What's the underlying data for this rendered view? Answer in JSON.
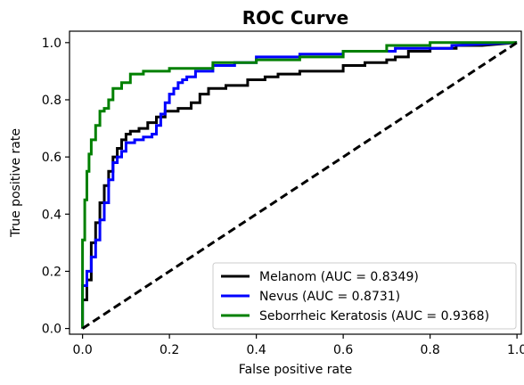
{
  "chart_data": {
    "type": "line",
    "title": "ROC Curve",
    "xlabel": "False positive rate",
    "ylabel": "True positive rate",
    "xlim": [
      -0.03,
      1.01
    ],
    "ylim": [
      -0.02,
      1.04
    ],
    "xticks": [
      "0.0",
      "0.2",
      "0.4",
      "0.6",
      "0.8",
      "1.0"
    ],
    "yticks": [
      "0.0",
      "0.2",
      "0.4",
      "0.6",
      "0.8",
      "1.0"
    ],
    "legend_position": "lower-right",
    "grid": false,
    "series": [
      {
        "name": "Melanom (AUC = 0.8349)",
        "color": "#000000",
        "style": "solid",
        "x": [
          0.0,
          0.0,
          0.01,
          0.01,
          0.02,
          0.02,
          0.03,
          0.03,
          0.04,
          0.04,
          0.05,
          0.05,
          0.06,
          0.06,
          0.07,
          0.07,
          0.08,
          0.08,
          0.09,
          0.09,
          0.1,
          0.1,
          0.11,
          0.11,
          0.13,
          0.13,
          0.15,
          0.15,
          0.17,
          0.17,
          0.19,
          0.19,
          0.22,
          0.22,
          0.25,
          0.25,
          0.27,
          0.27,
          0.29,
          0.29,
          0.31,
          0.31,
          0.33,
          0.33,
          0.38,
          0.38,
          0.42,
          0.42,
          0.45,
          0.45,
          0.5,
          0.5,
          0.55,
          0.55,
          0.6,
          0.6,
          0.65,
          0.65,
          0.7,
          0.7,
          0.72,
          0.72,
          0.75,
          0.75,
          0.8,
          0.8,
          0.86,
          0.86,
          0.92,
          0.92,
          1.0
        ],
        "y": [
          0.0,
          0.1,
          0.1,
          0.17,
          0.17,
          0.3,
          0.3,
          0.37,
          0.37,
          0.44,
          0.44,
          0.5,
          0.5,
          0.55,
          0.55,
          0.6,
          0.6,
          0.63,
          0.63,
          0.66,
          0.66,
          0.68,
          0.68,
          0.69,
          0.69,
          0.7,
          0.7,
          0.72,
          0.72,
          0.74,
          0.74,
          0.76,
          0.76,
          0.77,
          0.77,
          0.79,
          0.79,
          0.82,
          0.82,
          0.84,
          0.84,
          0.84,
          0.84,
          0.85,
          0.85,
          0.87,
          0.87,
          0.88,
          0.88,
          0.89,
          0.89,
          0.9,
          0.9,
          0.9,
          0.9,
          0.92,
          0.92,
          0.93,
          0.93,
          0.94,
          0.94,
          0.95,
          0.95,
          0.97,
          0.97,
          0.98,
          0.98,
          0.99,
          0.99,
          0.99,
          1.0
        ]
      },
      {
        "name": "Nevus (AUC = 0.8731)",
        "color": "#0000ff",
        "style": "solid",
        "x": [
          0.0,
          0.0,
          0.01,
          0.01,
          0.02,
          0.02,
          0.03,
          0.03,
          0.04,
          0.04,
          0.05,
          0.05,
          0.06,
          0.06,
          0.07,
          0.07,
          0.08,
          0.08,
          0.09,
          0.09,
          0.1,
          0.1,
          0.12,
          0.12,
          0.14,
          0.14,
          0.16,
          0.16,
          0.17,
          0.17,
          0.18,
          0.18,
          0.19,
          0.19,
          0.2,
          0.2,
          0.21,
          0.21,
          0.22,
          0.22,
          0.23,
          0.23,
          0.24,
          0.24,
          0.26,
          0.26,
          0.3,
          0.3,
          0.35,
          0.35,
          0.4,
          0.4,
          0.5,
          0.5,
          0.6,
          0.6,
          0.72,
          0.72,
          0.85,
          0.85,
          1.0
        ],
        "y": [
          0.0,
          0.15,
          0.15,
          0.2,
          0.2,
          0.25,
          0.25,
          0.31,
          0.31,
          0.38,
          0.38,
          0.44,
          0.44,
          0.52,
          0.52,
          0.58,
          0.58,
          0.6,
          0.6,
          0.62,
          0.62,
          0.65,
          0.65,
          0.66,
          0.66,
          0.67,
          0.67,
          0.68,
          0.68,
          0.71,
          0.71,
          0.75,
          0.75,
          0.79,
          0.79,
          0.82,
          0.82,
          0.84,
          0.84,
          0.86,
          0.86,
          0.87,
          0.87,
          0.88,
          0.88,
          0.9,
          0.9,
          0.92,
          0.92,
          0.93,
          0.93,
          0.95,
          0.95,
          0.96,
          0.96,
          0.97,
          0.97,
          0.98,
          0.98,
          0.99,
          1.0
        ]
      },
      {
        "name": "Seborrheic Keratosis (AUC = 0.9368)",
        "color": "#008000",
        "style": "solid",
        "x": [
          0.0,
          0.0,
          0.005,
          0.005,
          0.01,
          0.01,
          0.015,
          0.015,
          0.02,
          0.02,
          0.03,
          0.03,
          0.04,
          0.04,
          0.05,
          0.05,
          0.06,
          0.06,
          0.07,
          0.07,
          0.09,
          0.09,
          0.11,
          0.11,
          0.14,
          0.14,
          0.2,
          0.2,
          0.3,
          0.3,
          0.4,
          0.4,
          0.5,
          0.5,
          0.6,
          0.6,
          0.7,
          0.7,
          0.8,
          0.8,
          1.0
        ],
        "y": [
          0.0,
          0.31,
          0.31,
          0.45,
          0.45,
          0.55,
          0.55,
          0.61,
          0.61,
          0.66,
          0.66,
          0.71,
          0.71,
          0.76,
          0.76,
          0.77,
          0.77,
          0.8,
          0.8,
          0.84,
          0.84,
          0.86,
          0.86,
          0.89,
          0.89,
          0.9,
          0.9,
          0.91,
          0.91,
          0.93,
          0.93,
          0.94,
          0.94,
          0.95,
          0.95,
          0.97,
          0.97,
          0.99,
          0.99,
          1.0,
          1.0
        ]
      },
      {
        "name": "",
        "color": "#000000",
        "style": "dashed",
        "x": [
          0.0,
          1.0
        ],
        "y": [
          0.0,
          1.0
        ]
      }
    ]
  }
}
